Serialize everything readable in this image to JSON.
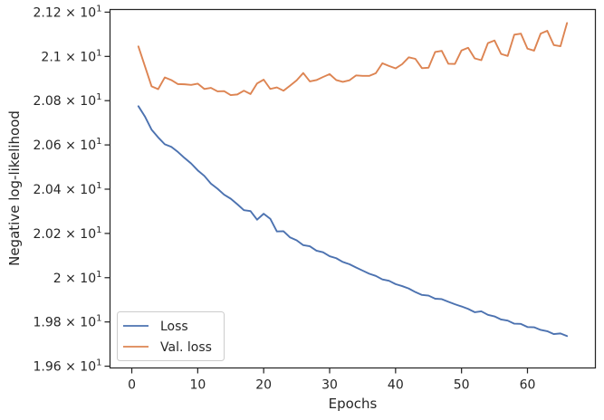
{
  "chart_data": {
    "type": "line",
    "xlabel": "Epochs",
    "ylabel": "Negative log-likelihood",
    "xlim": [
      -3.3,
      70.3
    ],
    "ylim": [
      19.592,
      21.212
    ],
    "x_ticks": [
      0,
      10,
      20,
      30,
      40,
      50,
      60
    ],
    "x_tick_labels": [
      "0",
      "10",
      "20",
      "30",
      "40",
      "50",
      "60"
    ],
    "y_ticks": [
      19.6,
      19.8,
      20.0,
      20.2,
      20.4,
      20.6,
      20.8,
      21.0,
      21.2
    ],
    "y_tick_mantissas": [
      "1.96",
      "1.98",
      "2",
      "2.02",
      "2.04",
      "2.06",
      "2.08",
      "2.1",
      "2.12"
    ],
    "y_tick_base": "× 10",
    "y_tick_exponent": "1",
    "grid": false,
    "legend_position": "lower-left",
    "colors": {
      "Loss": "#4c72b0",
      "Val. loss": "#dd8452"
    },
    "x": [
      1,
      2,
      3,
      4,
      5,
      6,
      7,
      8,
      9,
      10,
      11,
      12,
      13,
      14,
      15,
      16,
      17,
      18,
      19,
      20,
      21,
      22,
      23,
      24,
      25,
      26,
      27,
      28,
      29,
      30,
      31,
      32,
      33,
      34,
      35,
      36,
      37,
      38,
      39,
      40,
      41,
      42,
      43,
      44,
      45,
      46,
      47,
      48,
      49,
      50,
      51,
      52,
      53,
      54,
      55,
      56,
      57,
      58,
      59,
      60,
      61,
      62,
      63,
      64,
      65,
      66
    ],
    "series": [
      {
        "name": "Loss",
        "values": [
          20.775,
          20.728,
          20.669,
          20.634,
          20.603,
          20.591,
          20.568,
          20.541,
          20.516,
          20.485,
          20.46,
          20.425,
          20.402,
          20.375,
          20.357,
          20.332,
          20.305,
          20.301,
          20.262,
          20.289,
          20.266,
          20.209,
          20.21,
          20.182,
          20.169,
          20.147,
          20.142,
          20.122,
          20.115,
          20.097,
          20.088,
          20.071,
          20.061,
          20.046,
          20.032,
          20.018,
          20.008,
          19.992,
          19.986,
          19.971,
          19.962,
          19.951,
          19.935,
          19.922,
          19.919,
          19.905,
          19.903,
          19.891,
          19.88,
          19.87,
          19.859,
          19.844,
          19.848,
          19.832,
          19.825,
          19.811,
          19.806,
          19.792,
          19.791,
          19.777,
          19.776,
          19.764,
          19.758,
          19.745,
          19.748,
          19.736
        ]
      },
      {
        "name": "Val. loss",
        "values": [
          21.045,
          20.955,
          20.865,
          20.852,
          20.905,
          20.893,
          20.875,
          20.874,
          20.871,
          20.877,
          20.853,
          20.858,
          20.842,
          20.843,
          20.825,
          20.828,
          20.845,
          20.83,
          20.878,
          20.895,
          20.853,
          20.86,
          20.845,
          20.868,
          20.892,
          20.925,
          20.887,
          20.893,
          20.907,
          20.92,
          20.893,
          20.885,
          20.892,
          20.914,
          20.912,
          20.912,
          20.924,
          20.969,
          20.957,
          20.946,
          20.965,
          20.996,
          20.989,
          20.947,
          20.949,
          21.02,
          21.025,
          20.967,
          20.966,
          21.027,
          21.039,
          20.991,
          20.983,
          21.06,
          21.072,
          21.011,
          21.002,
          21.098,
          21.103,
          21.035,
          21.026,
          21.103,
          21.116,
          21.051,
          21.046,
          21.151
        ]
      }
    ]
  }
}
